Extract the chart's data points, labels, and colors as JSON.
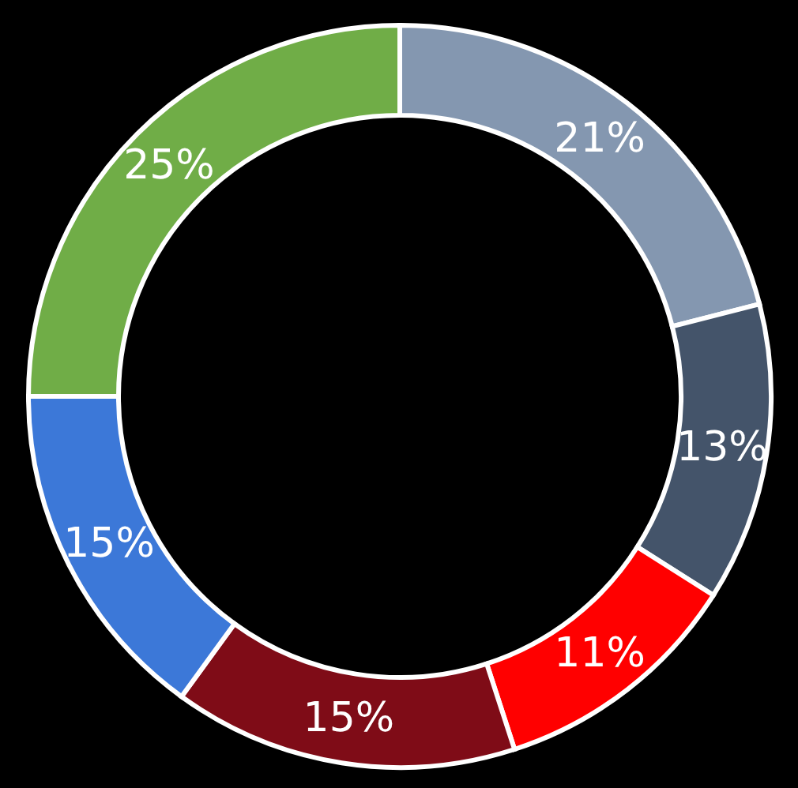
{
  "chart_data": {
    "type": "donut",
    "categories": [
      null,
      null,
      null,
      null,
      null,
      null
    ],
    "values": [
      21,
      13,
      11,
      15,
      15,
      25
    ],
    "colors": [
      "#8497b0",
      "#44546a",
      "#ff0000",
      "#7f0c17",
      "#3c78d8",
      "#70ad47"
    ],
    "value_labels": [
      "21%",
      "13%",
      "11%",
      "15%",
      "15%",
      "25%"
    ]
  }
}
